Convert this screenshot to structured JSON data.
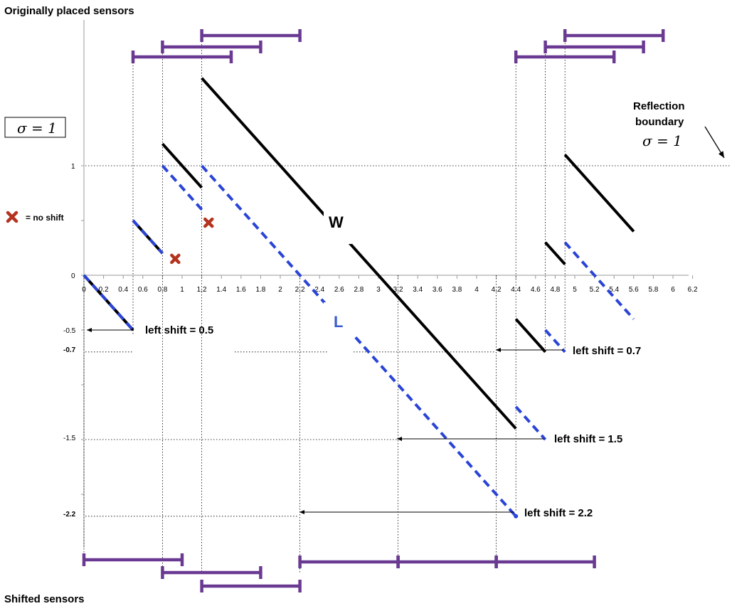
{
  "titles": {
    "top": "Originally placed sensors",
    "bottom": "Shifted sensors"
  },
  "sigma_box": "σ = 1",
  "reflection": {
    "line1": "Reflection",
    "line2": "boundary",
    "sigma": "σ = 1"
  },
  "legend": {
    "text": "= no shift"
  },
  "curve_labels": {
    "w": "W",
    "l": "L"
  },
  "shift_labels": {
    "s05": "left shift = 0.5",
    "s07": "left shift = 0.7",
    "s15": "left shift = 1.5",
    "s22": "left shift = 2.2"
  },
  "x_ticks": [
    "0",
    "0.2",
    "0.4",
    "0.6",
    "0.8",
    "1",
    "1.2",
    "1.4",
    "1.6",
    "1.8",
    "2",
    "2.2",
    "2.4",
    "2.6",
    "2.8",
    "3",
    "3.2",
    "3.4",
    "3.6",
    "3.8",
    "4",
    "4.2",
    "4.4",
    "4.6",
    "4.8",
    "5",
    "5.2",
    "5.4",
    "5.6",
    "5.8",
    "6",
    "6.2"
  ],
  "y_ticks": [
    "1",
    "0",
    "-0.5",
    "-0.7",
    "-1.5",
    "-2.2"
  ],
  "colors": {
    "w_curve": "#000000",
    "l_curve": "#2a44d6",
    "sensor": "#6a3a93",
    "no_shift_marker": "#b3331f"
  },
  "sensors_original": [
    [
      0.5,
      1.5
    ],
    [
      0.8,
      1.8
    ],
    [
      1.2,
      2.2
    ],
    [
      4.4,
      5.4
    ],
    [
      4.7,
      5.7
    ],
    [
      4.9,
      5.9
    ]
  ],
  "sensors_shifted": [
    [
      0,
      1
    ],
    [
      0.8,
      1.8
    ],
    [
      1.2,
      2.2
    ],
    [
      2.2,
      3.2
    ],
    [
      3.2,
      4.2
    ],
    [
      4.2,
      5.2
    ]
  ],
  "w_segments": [
    [
      0,
      0,
      0.5,
      -0.5
    ],
    [
      0.5,
      0.5,
      0.8,
      0.2
    ],
    [
      0.8,
      1.2,
      1.2,
      0.8
    ],
    [
      1.2,
      1.8,
      4.4,
      -1.4
    ],
    [
      4.4,
      -0.4,
      4.7,
      -0.7
    ],
    [
      4.7,
      0.3,
      4.9,
      0.1
    ],
    [
      4.9,
      1.1,
      5.6,
      0.4
    ]
  ],
  "l_segments": [
    [
      0,
      0,
      0.5,
      -0.5
    ],
    [
      0.5,
      0.5,
      0.8,
      0.2
    ],
    [
      0.8,
      1,
      1.2,
      0.6
    ],
    [
      1.2,
      1,
      4.4,
      -2.2
    ],
    [
      4.4,
      -1.2,
      4.7,
      -1.5
    ],
    [
      4.7,
      -0.5,
      4.9,
      -0.7
    ],
    [
      4.9,
      0.3,
      5.6,
      -0.4
    ]
  ],
  "no_shift_points": [
    [
      0.93,
      0.15
    ],
    [
      1.27,
      0.48
    ]
  ]
}
